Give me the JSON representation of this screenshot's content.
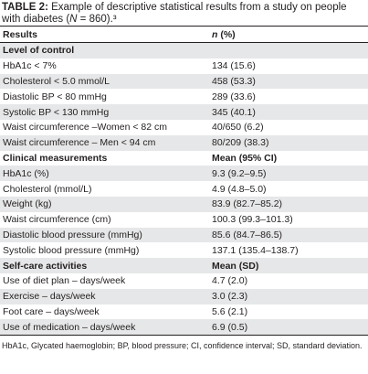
{
  "caption": {
    "label": "TABLE 2:",
    "text_before": "Example of descriptive statistical results from a study on people with diabetes (",
    "n_symbol": "N",
    "text_after": " = 860).³"
  },
  "header": {
    "results": "Results",
    "value_symbol": "n",
    "value_suffix": " (%)"
  },
  "sections": [
    {
      "title": "Level of control",
      "rows": [
        [
          "HbA1c < 7%",
          "134 (15.6)"
        ],
        [
          "Cholesterol < 5.0 mmol/L",
          "458 (53.3)"
        ],
        [
          "Diastolic BP < 80 mmHg",
          "289 (33.6)"
        ],
        [
          "Systolic BP < 130 mmHg",
          "345 (40.1)"
        ],
        [
          "Waist circumference –Women < 82 cm",
          "40/650 (6.2)"
        ],
        [
          "Waist circumference – Men < 94 cm",
          "80/209 (38.3)"
        ]
      ]
    },
    {
      "title": "Clinical measurements",
      "value_header": "Mean (95% CI)",
      "rows": [
        [
          "HbA1c (%)",
          "9.3 (9.2–9.5)"
        ],
        [
          "Cholesterol (mmol/L)",
          "4.9 (4.8–5.0)"
        ],
        [
          "Weight (kg)",
          "83.9 (82.7–85.2)"
        ],
        [
          "Waist circumference (cm)",
          "100.3 (99.3–101.3)"
        ],
        [
          "Diastolic blood pressure (mmHg)",
          "85.6 (84.7–86.5)"
        ],
        [
          "Systolic blood pressure (mmHg)",
          "137.1 (135.4–138.7)"
        ]
      ]
    },
    {
      "title": "Self-care activities",
      "value_header": "Mean (SD)",
      "rows": [
        [
          "Use of diet plan – days/week",
          "4.7 (2.0)"
        ],
        [
          "Exercise – days/week",
          "3.0 (2.3)"
        ],
        [
          "Foot care – days/week",
          "5.6 (2.1)"
        ],
        [
          "Use of medication – days/week",
          "6.9 (0.5)"
        ]
      ]
    }
  ],
  "footnote": "HbA1c, Glycated haemoglobin; BP, blood pressure; CI, confidence interval; SD, standard deviation."
}
